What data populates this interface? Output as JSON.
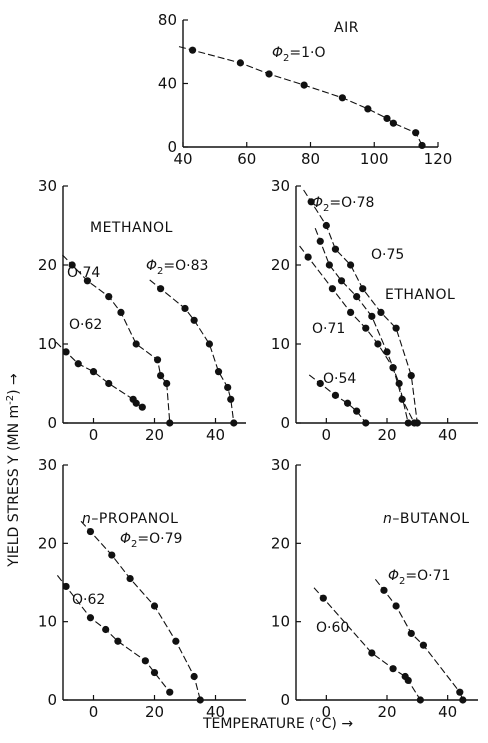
{
  "figure": {
    "ylabel": "YIELD STRESS Y (MN m",
    "ylabel_sup": "-2",
    "ylabel_tail": ") →",
    "xlabel": "TEMPERATURE (°C) →"
  },
  "chart_data": [
    {
      "type": "scatter",
      "panel": "air",
      "label": "AIR",
      "xlim": [
        40,
        120
      ],
      "ylim": [
        0,
        80
      ],
      "xticks": [
        "40",
        "60",
        "80",
        "100",
        "120"
      ],
      "yticks": [
        "0",
        "40",
        "80"
      ],
      "series": [
        {
          "name": "Φ₂=1·O",
          "x": [
            43,
            58,
            67,
            78,
            90,
            98,
            104,
            106,
            113,
            115
          ],
          "y": [
            61,
            53,
            46,
            39,
            31,
            24,
            18,
            15,
            9,
            1
          ]
        }
      ]
    },
    {
      "type": "scatter",
      "panel": "methanol",
      "label": "METHANOL",
      "xlim": [
        -10,
        50
      ],
      "ylim": [
        0,
        30
      ],
      "xticks": [
        "0",
        "20",
        "40"
      ],
      "yticks": [
        "0",
        "10",
        "20",
        "30"
      ],
      "series": [
        {
          "name": "O·62",
          "x": [
            -9,
            -5,
            0,
            5,
            13,
            14,
            16
          ],
          "y": [
            9,
            7.5,
            6.5,
            5,
            3,
            2.5,
            2
          ]
        },
        {
          "name": "O·74",
          "x": [
            -7,
            -2,
            5,
            9,
            14,
            21,
            22,
            24,
            25
          ],
          "y": [
            20,
            18,
            16,
            14,
            10,
            8,
            6,
            5,
            0
          ]
        },
        {
          "name": "Φ₂=O·83",
          "x": [
            22,
            30,
            33,
            38,
            41,
            44,
            45,
            46
          ],
          "y": [
            17,
            14.5,
            13,
            10,
            6.5,
            4.5,
            3,
            0
          ]
        }
      ]
    },
    {
      "type": "scatter",
      "panel": "ethanol",
      "label": "ETHANOL",
      "xlim": [
        -10,
        50
      ],
      "ylim": [
        0,
        30
      ],
      "xticks": [
        "0",
        "20",
        "40"
      ],
      "yticks": [
        "0",
        "10",
        "20",
        "30"
      ],
      "series": [
        {
          "name": "O·54",
          "x": [
            -2,
            3,
            7,
            10,
            13
          ],
          "y": [
            5,
            3.5,
            2.5,
            1.5,
            0
          ]
        },
        {
          "name": "O·71",
          "x": [
            -6,
            2,
            8,
            13,
            17,
            22,
            24,
            27
          ],
          "y": [
            21,
            17,
            14,
            12,
            10,
            7,
            5,
            0
          ]
        },
        {
          "name": "O·75",
          "x": [
            -2,
            1,
            5,
            10,
            15,
            20,
            22,
            25,
            29
          ],
          "y": [
            23,
            20,
            18,
            16,
            13.5,
            9,
            7,
            3,
            0
          ]
        },
        {
          "name": "Φ₂=O·78",
          "x": [
            -5,
            0,
            3,
            8,
            12,
            18,
            23,
            28,
            30
          ],
          "y": [
            28,
            25,
            22,
            20,
            17,
            14,
            12,
            6,
            0
          ]
        }
      ]
    },
    {
      "type": "scatter",
      "panel": "propanol",
      "label": "n–PROPANOL",
      "xlim": [
        -10,
        50
      ],
      "ylim": [
        0,
        30
      ],
      "xticks": [
        "0",
        "20",
        "40"
      ],
      "yticks": [
        "0",
        "10",
        "20",
        "30"
      ],
      "series": [
        {
          "name": "O·62",
          "x": [
            -9,
            -1,
            4,
            8,
            17,
            20,
            25
          ],
          "y": [
            14.5,
            10.5,
            9,
            7.5,
            5,
            3.5,
            1
          ]
        },
        {
          "name": "Φ₂=O·79",
          "x": [
            -1,
            6,
            12,
            20,
            27,
            33,
            35
          ],
          "y": [
            21.5,
            18.5,
            15.5,
            12,
            7.5,
            3,
            0
          ]
        }
      ]
    },
    {
      "type": "scatter",
      "panel": "butanol",
      "label": "n–BUTANOL",
      "xlim": [
        -10,
        50
      ],
      "ylim": [
        0,
        30
      ],
      "xticks": [
        "0",
        "20",
        "40"
      ],
      "yticks": [
        "0",
        "10",
        "20",
        "30"
      ],
      "series": [
        {
          "name": "O·60",
          "x": [
            -1,
            15,
            22,
            26,
            27,
            31
          ],
          "y": [
            13,
            6,
            4,
            3,
            2.5,
            0
          ]
        },
        {
          "name": "Φ₂=O·71",
          "x": [
            19,
            23,
            28,
            32,
            44,
            45
          ],
          "y": [
            14,
            12,
            8.5,
            7,
            1,
            0
          ]
        }
      ]
    }
  ]
}
